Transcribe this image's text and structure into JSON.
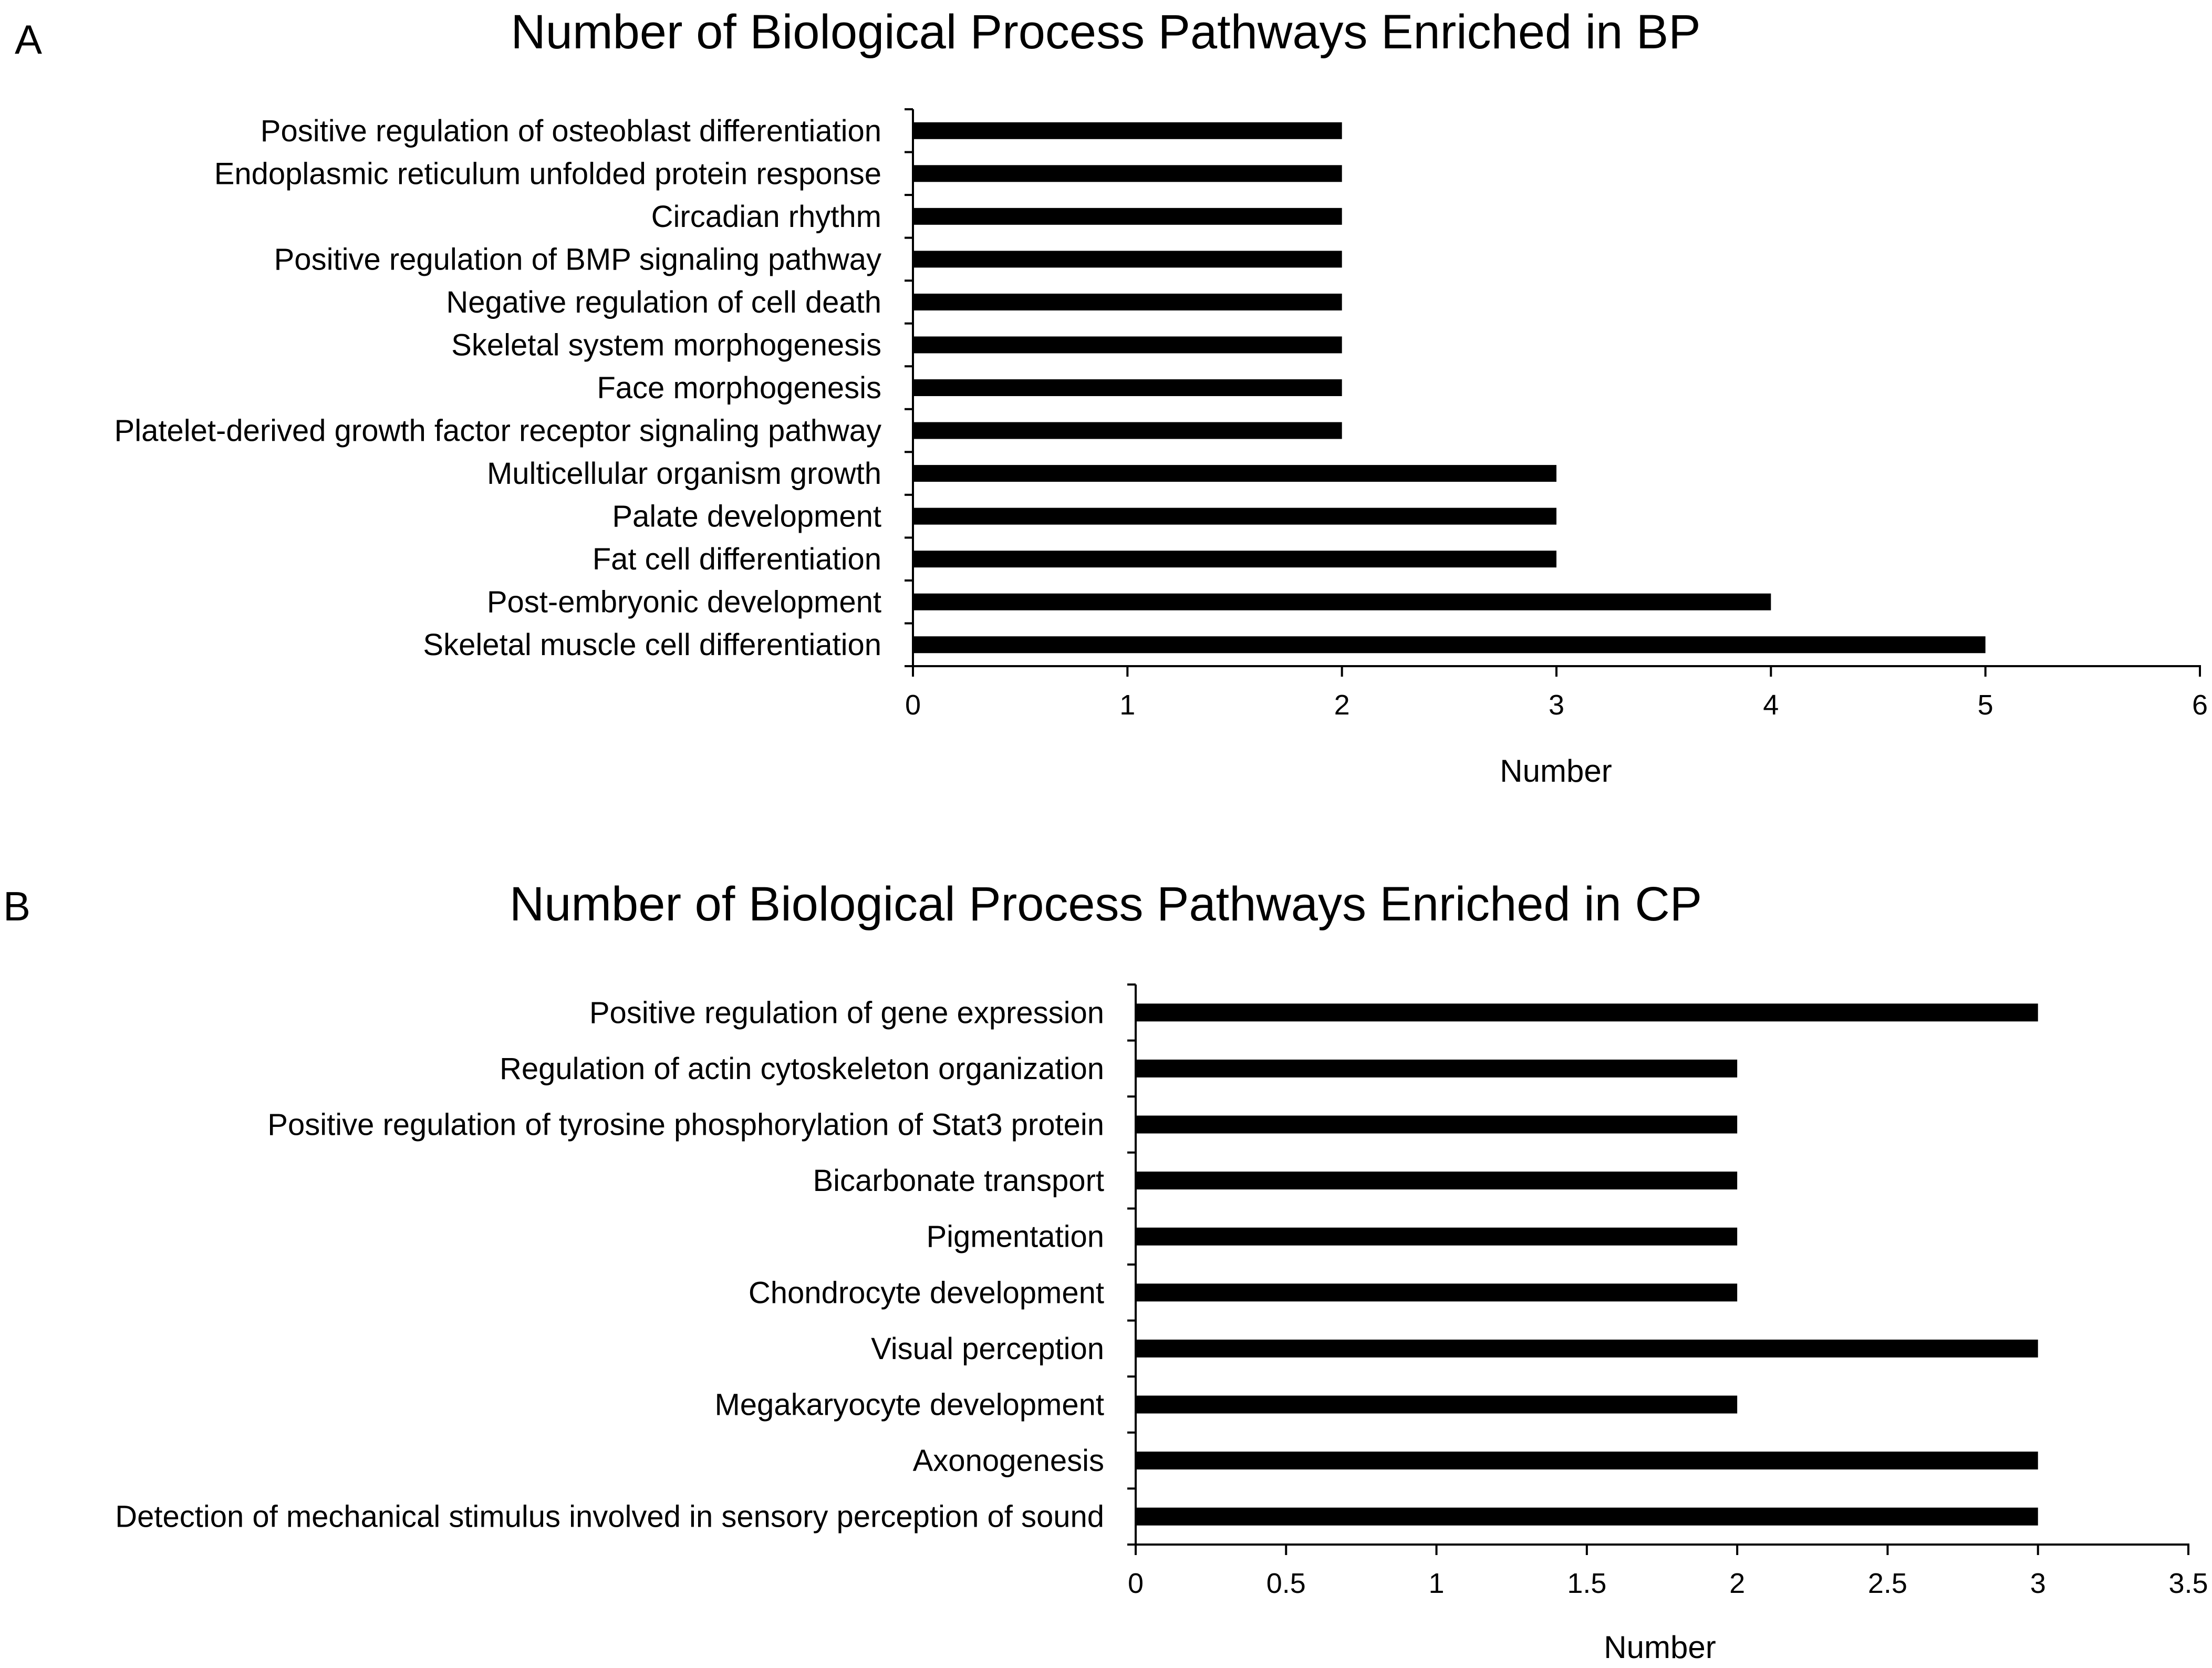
{
  "chart_data": [
    {
      "panel": "A",
      "type": "bar",
      "orientation": "horizontal",
      "title": "Number of Biological Process Pathways Enriched in BP",
      "xlabel": "Number",
      "ylabel": "",
      "xlim": [
        0,
        6
      ],
      "xticks": [
        "0",
        "1",
        "2",
        "3",
        "4",
        "5",
        "6"
      ],
      "grid": false,
      "legend": "none",
      "bar_color": "#000000",
      "categories": [
        "Positive regulation of osteoblast differentiation",
        "Endoplasmic reticulum unfolded protein response",
        "Circadian rhythm",
        "Positive regulation of BMP signaling pathway",
        "Negative regulation of cell death",
        "Skeletal system morphogenesis",
        "Face morphogenesis",
        "Platelet-derived growth factor receptor signaling pathway",
        "Multicellular organism growth",
        "Palate development",
        "Fat cell differentiation",
        "Post-embryonic development",
        "Skeletal muscle cell differentiation"
      ],
      "values": [
        2,
        2,
        2,
        2,
        2,
        2,
        2,
        2,
        3,
        3,
        3,
        4,
        5
      ]
    },
    {
      "panel": "B",
      "type": "bar",
      "orientation": "horizontal",
      "title": "Number of Biological Process Pathways Enriched in CP",
      "xlabel": "Number",
      "ylabel": "",
      "xlim": [
        0,
        3.5
      ],
      "xticks": [
        "0",
        "0.5",
        "1",
        "1.5",
        "2",
        "2.5",
        "3",
        "3.5"
      ],
      "grid": false,
      "legend": "none",
      "bar_color": "#000000",
      "categories": [
        "Positive regulation of gene expression",
        "Regulation of actin cytoskeleton organization",
        "Positive regulation of tyrosine phosphorylation of Stat3 protein",
        "Bicarbonate transport",
        "Pigmentation",
        "Chondrocyte development",
        "Visual perception",
        "Megakaryocyte development",
        "Axonogenesis",
        "Detection of mechanical stimulus involved in sensory perception of sound"
      ],
      "values": [
        3,
        2,
        2,
        2,
        2,
        2,
        3,
        2,
        3,
        3
      ]
    }
  ]
}
